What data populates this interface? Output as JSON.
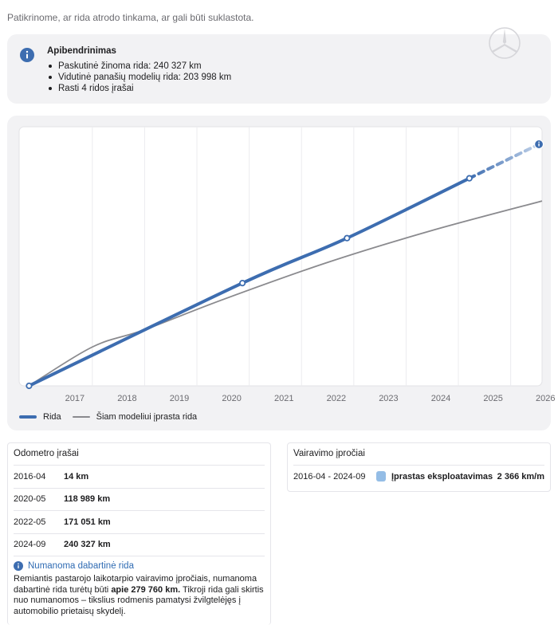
{
  "intro_text": "Patikrinome, ar rida atrodo tinkama, ar gali būti suklastota.",
  "summary": {
    "title": "Apibendrinimas",
    "items": [
      "Paskutinė žinoma rida: 240 327 km",
      "Vidutinė panašių modelių rida: 203 998 km",
      "Rasti 4 ridos įrašai"
    ]
  },
  "colors": {
    "accent": "#3d6db0",
    "typical": "#8a8a8e",
    "card_bg": "#f2f2f4",
    "habit": "#94bde6"
  },
  "chart_data": {
    "type": "line",
    "x_ticks": [
      "2017",
      "2018",
      "2019",
      "2020",
      "2021",
      "2022",
      "2023",
      "2024",
      "2025",
      "2026"
    ],
    "x_range": [
      2016.1,
      2026.1
    ],
    "y_range": [
      0,
      300000
    ],
    "grid": true,
    "legend_position": "bottom-left",
    "series": [
      {
        "name": "Rida",
        "points": [
          {
            "date": "2016-04",
            "x": 2016.29,
            "km": 14
          },
          {
            "date": "2020-05",
            "x": 2020.37,
            "km": 118989
          },
          {
            "date": "2022-05",
            "x": 2022.37,
            "km": 171051
          },
          {
            "date": "2024-09",
            "x": 2024.71,
            "km": 240327
          }
        ],
        "projected": {
          "date": "2026-01",
          "x": 2026.04,
          "km": 279760
        }
      },
      {
        "name": "Šiam modeliui įprasta rida",
        "points": [
          {
            "x": 2016.29,
            "km": 0
          },
          {
            "x": 2017.5,
            "km": 45000
          },
          {
            "x": 2018.5,
            "km": 65000
          },
          {
            "x": 2020.0,
            "km": 100000
          },
          {
            "x": 2022.0,
            "km": 143000
          },
          {
            "x": 2024.0,
            "km": 180000
          },
          {
            "x": 2026.1,
            "km": 214000
          }
        ]
      }
    ]
  },
  "odometer": {
    "title": "Odometro įrašai",
    "rows": [
      {
        "date": "2016-04",
        "km": "14 km"
      },
      {
        "date": "2020-05",
        "km": "118 989 km"
      },
      {
        "date": "2022-05",
        "km": "171 051 km"
      },
      {
        "date": "2024-09",
        "km": "240 327 km"
      }
    ],
    "estimate_title": "Numanoma dabartinė rida",
    "estimate_text_1": "Remiantis pastarojo laikotarpio vairavimo įpročiais, numanoma dabartinė rida turėtų būti ",
    "estimate_value": "apie 279 760 km.",
    "estimate_text_2": " Tikroji rida gali skirtis nuo numanomos – tikslius rodmenis pamatysi žvilgtelėjęs į automobilio prietaisų skydelį."
  },
  "habits": {
    "title": "Vairavimo įpročiai",
    "rows": [
      {
        "range": "2016-04 - 2024-09",
        "type": "Įprastas eksploatavimas",
        "value": "2 366 km/m"
      }
    ]
  }
}
